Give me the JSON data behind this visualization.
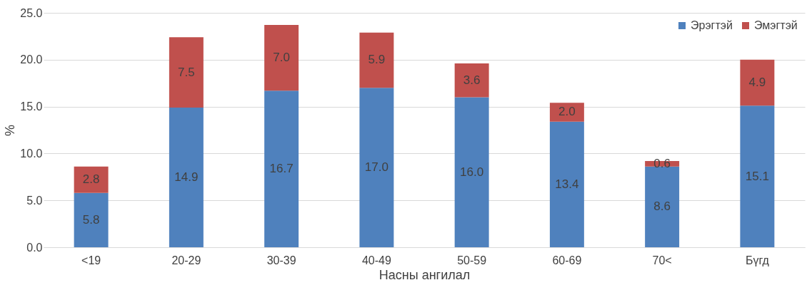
{
  "chart_data": {
    "type": "bar",
    "stacked": true,
    "xlabel": "Насны ангилал",
    "ylabel": "%",
    "categories": [
      "<19",
      "20-29",
      "30-39",
      "40-49",
      "50-59",
      "60-69",
      "70<",
      "Бүгд"
    ],
    "series": [
      {
        "name": "Эрэгтэй",
        "color": "#4f81bd",
        "values": [
          5.8,
          14.9,
          16.7,
          17.0,
          16.0,
          13.4,
          8.6,
          15.1
        ],
        "value_labels": [
          "5.8",
          "14.9",
          "16.7",
          "17.0",
          "16.0",
          "13.4",
          "8.6",
          "15.1"
        ]
      },
      {
        "name": "Эмэгтэй",
        "color": "#c0504d",
        "values": [
          2.8,
          7.5,
          7.0,
          5.9,
          3.6,
          2.0,
          0.6,
          4.9
        ],
        "value_labels": [
          "2.8",
          "7.5",
          "7.0",
          "5.9",
          "3.6",
          "2.0",
          "0.6",
          "4.9"
        ]
      }
    ],
    "ylim": [
      0,
      25
    ],
    "yticks": [
      {
        "value": 0,
        "label": "0.0"
      },
      {
        "value": 5,
        "label": "5.0"
      },
      {
        "value": 10,
        "label": "10.0"
      },
      {
        "value": 15,
        "label": "15.0"
      },
      {
        "value": 20,
        "label": "20.0"
      },
      {
        "value": 25,
        "label": "25.0"
      }
    ],
    "grid": "y",
    "legend": "top right"
  }
}
